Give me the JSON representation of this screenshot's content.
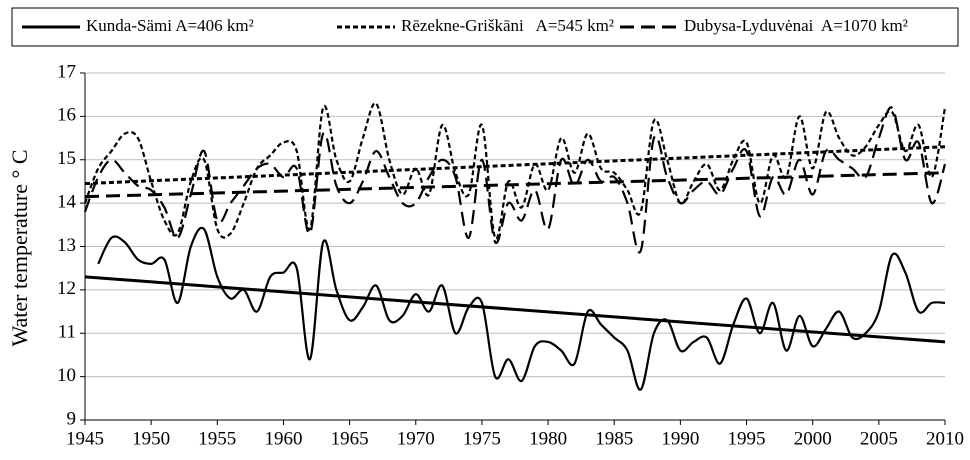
{
  "chart_data": {
    "type": "line",
    "y_label": "Water temperature ° C",
    "legend": "top",
    "grid": true,
    "xlim": [
      1945,
      2010
    ],
    "xticks": [
      1945,
      1950,
      1955,
      1960,
      1965,
      1970,
      1975,
      1980,
      1985,
      1990,
      1995,
      2000,
      2005,
      2010
    ],
    "ylim": [
      9,
      17
    ],
    "yticks": [
      9,
      10,
      11,
      12,
      13,
      14,
      15,
      16,
      17
    ],
    "x": [
      1945,
      1946,
      1947,
      1948,
      1949,
      1950,
      1951,
      1952,
      1953,
      1954,
      1955,
      1956,
      1957,
      1958,
      1959,
      1960,
      1961,
      1962,
      1963,
      1964,
      1965,
      1966,
      1967,
      1968,
      1969,
      1970,
      1971,
      1972,
      1973,
      1974,
      1975,
      1976,
      1977,
      1978,
      1979,
      1980,
      1981,
      1982,
      1983,
      1984,
      1985,
      1986,
      1987,
      1988,
      1989,
      1990,
      1991,
      1992,
      1993,
      1994,
      1995,
      1996,
      1997,
      1998,
      1999,
      2000,
      2001,
      2002,
      2003,
      2004,
      2005,
      2006,
      2007,
      2008,
      2009,
      2010
    ],
    "series": [
      {
        "name": "Kunda-Sämi A=406 km²",
        "color": "#000000",
        "line_style": "solid",
        "values": [
          null,
          12.6,
          13.2,
          13.1,
          12.7,
          12.6,
          12.7,
          11.7,
          13.0,
          13.4,
          12.3,
          11.8,
          12.0,
          11.5,
          12.3,
          12.4,
          12.5,
          10.4,
          13.1,
          12.0,
          11.3,
          11.6,
          12.1,
          11.3,
          11.4,
          11.9,
          11.5,
          12.1,
          11.0,
          11.6,
          11.7,
          10.0,
          10.4,
          9.9,
          10.7,
          10.8,
          10.6,
          10.3,
          11.5,
          11.2,
          10.9,
          10.6,
          9.7,
          11.0,
          11.3,
          10.6,
          10.8,
          10.9,
          10.3,
          11.2,
          11.8,
          11.0,
          11.7,
          10.6,
          11.4,
          10.7,
          11.1,
          11.5,
          10.9,
          11.0,
          11.5,
          12.8,
          12.4,
          11.5,
          11.7,
          11.7
        ],
        "trend": [
          12.3,
          10.8
        ]
      },
      {
        "name": "Rēzekne-Griškāni   A=545 km²",
        "color": "#000000",
        "line_style": "dotted",
        "values": [
          14.0,
          14.8,
          15.2,
          15.6,
          15.5,
          14.5,
          13.6,
          13.3,
          14.5,
          15.0,
          13.4,
          13.3,
          14.0,
          14.8,
          15.1,
          15.4,
          15.2,
          13.4,
          16.2,
          15.0,
          14.5,
          15.5,
          16.3,
          15.0,
          14.2,
          14.8,
          14.2,
          15.8,
          14.7,
          14.2,
          15.8,
          13.2,
          14.5,
          13.9,
          14.9,
          14.3,
          15.5,
          14.7,
          15.6,
          14.8,
          14.7,
          14.3,
          13.8,
          15.9,
          15.0,
          14.0,
          14.5,
          14.9,
          14.3,
          15.0,
          15.4,
          14.0,
          15.1,
          14.6,
          16.0,
          14.8,
          16.1,
          15.5,
          15.1,
          15.3,
          15.8,
          16.1,
          15.2,
          15.8,
          14.6,
          16.2
        ],
        "trend": [
          14.45,
          15.3
        ]
      },
      {
        "name": "Dubysa-Lyduvėnai  A=1070 km²",
        "color": "#000000",
        "line_style": "dashed",
        "values": [
          13.8,
          14.6,
          15.0,
          14.7,
          14.4,
          14.3,
          13.9,
          13.2,
          14.2,
          15.2,
          13.6,
          14.0,
          14.4,
          14.8,
          14.9,
          14.6,
          14.8,
          13.3,
          15.6,
          14.4,
          14.0,
          14.5,
          15.2,
          14.6,
          14.0,
          14.0,
          14.6,
          15.0,
          14.6,
          13.2,
          15.0,
          13.1,
          14.0,
          13.6,
          14.3,
          13.4,
          15.0,
          14.4,
          15.0,
          14.5,
          14.6,
          14.0,
          12.9,
          15.5,
          14.6,
          14.0,
          14.3,
          14.5,
          14.2,
          14.8,
          15.2,
          13.7,
          14.6,
          14.2,
          15.0,
          14.2,
          15.2,
          15.0,
          14.8,
          14.6,
          15.5,
          16.2,
          15.0,
          15.4,
          14.0,
          14.9
        ],
        "trend": [
          14.15,
          14.7
        ]
      }
    ]
  }
}
